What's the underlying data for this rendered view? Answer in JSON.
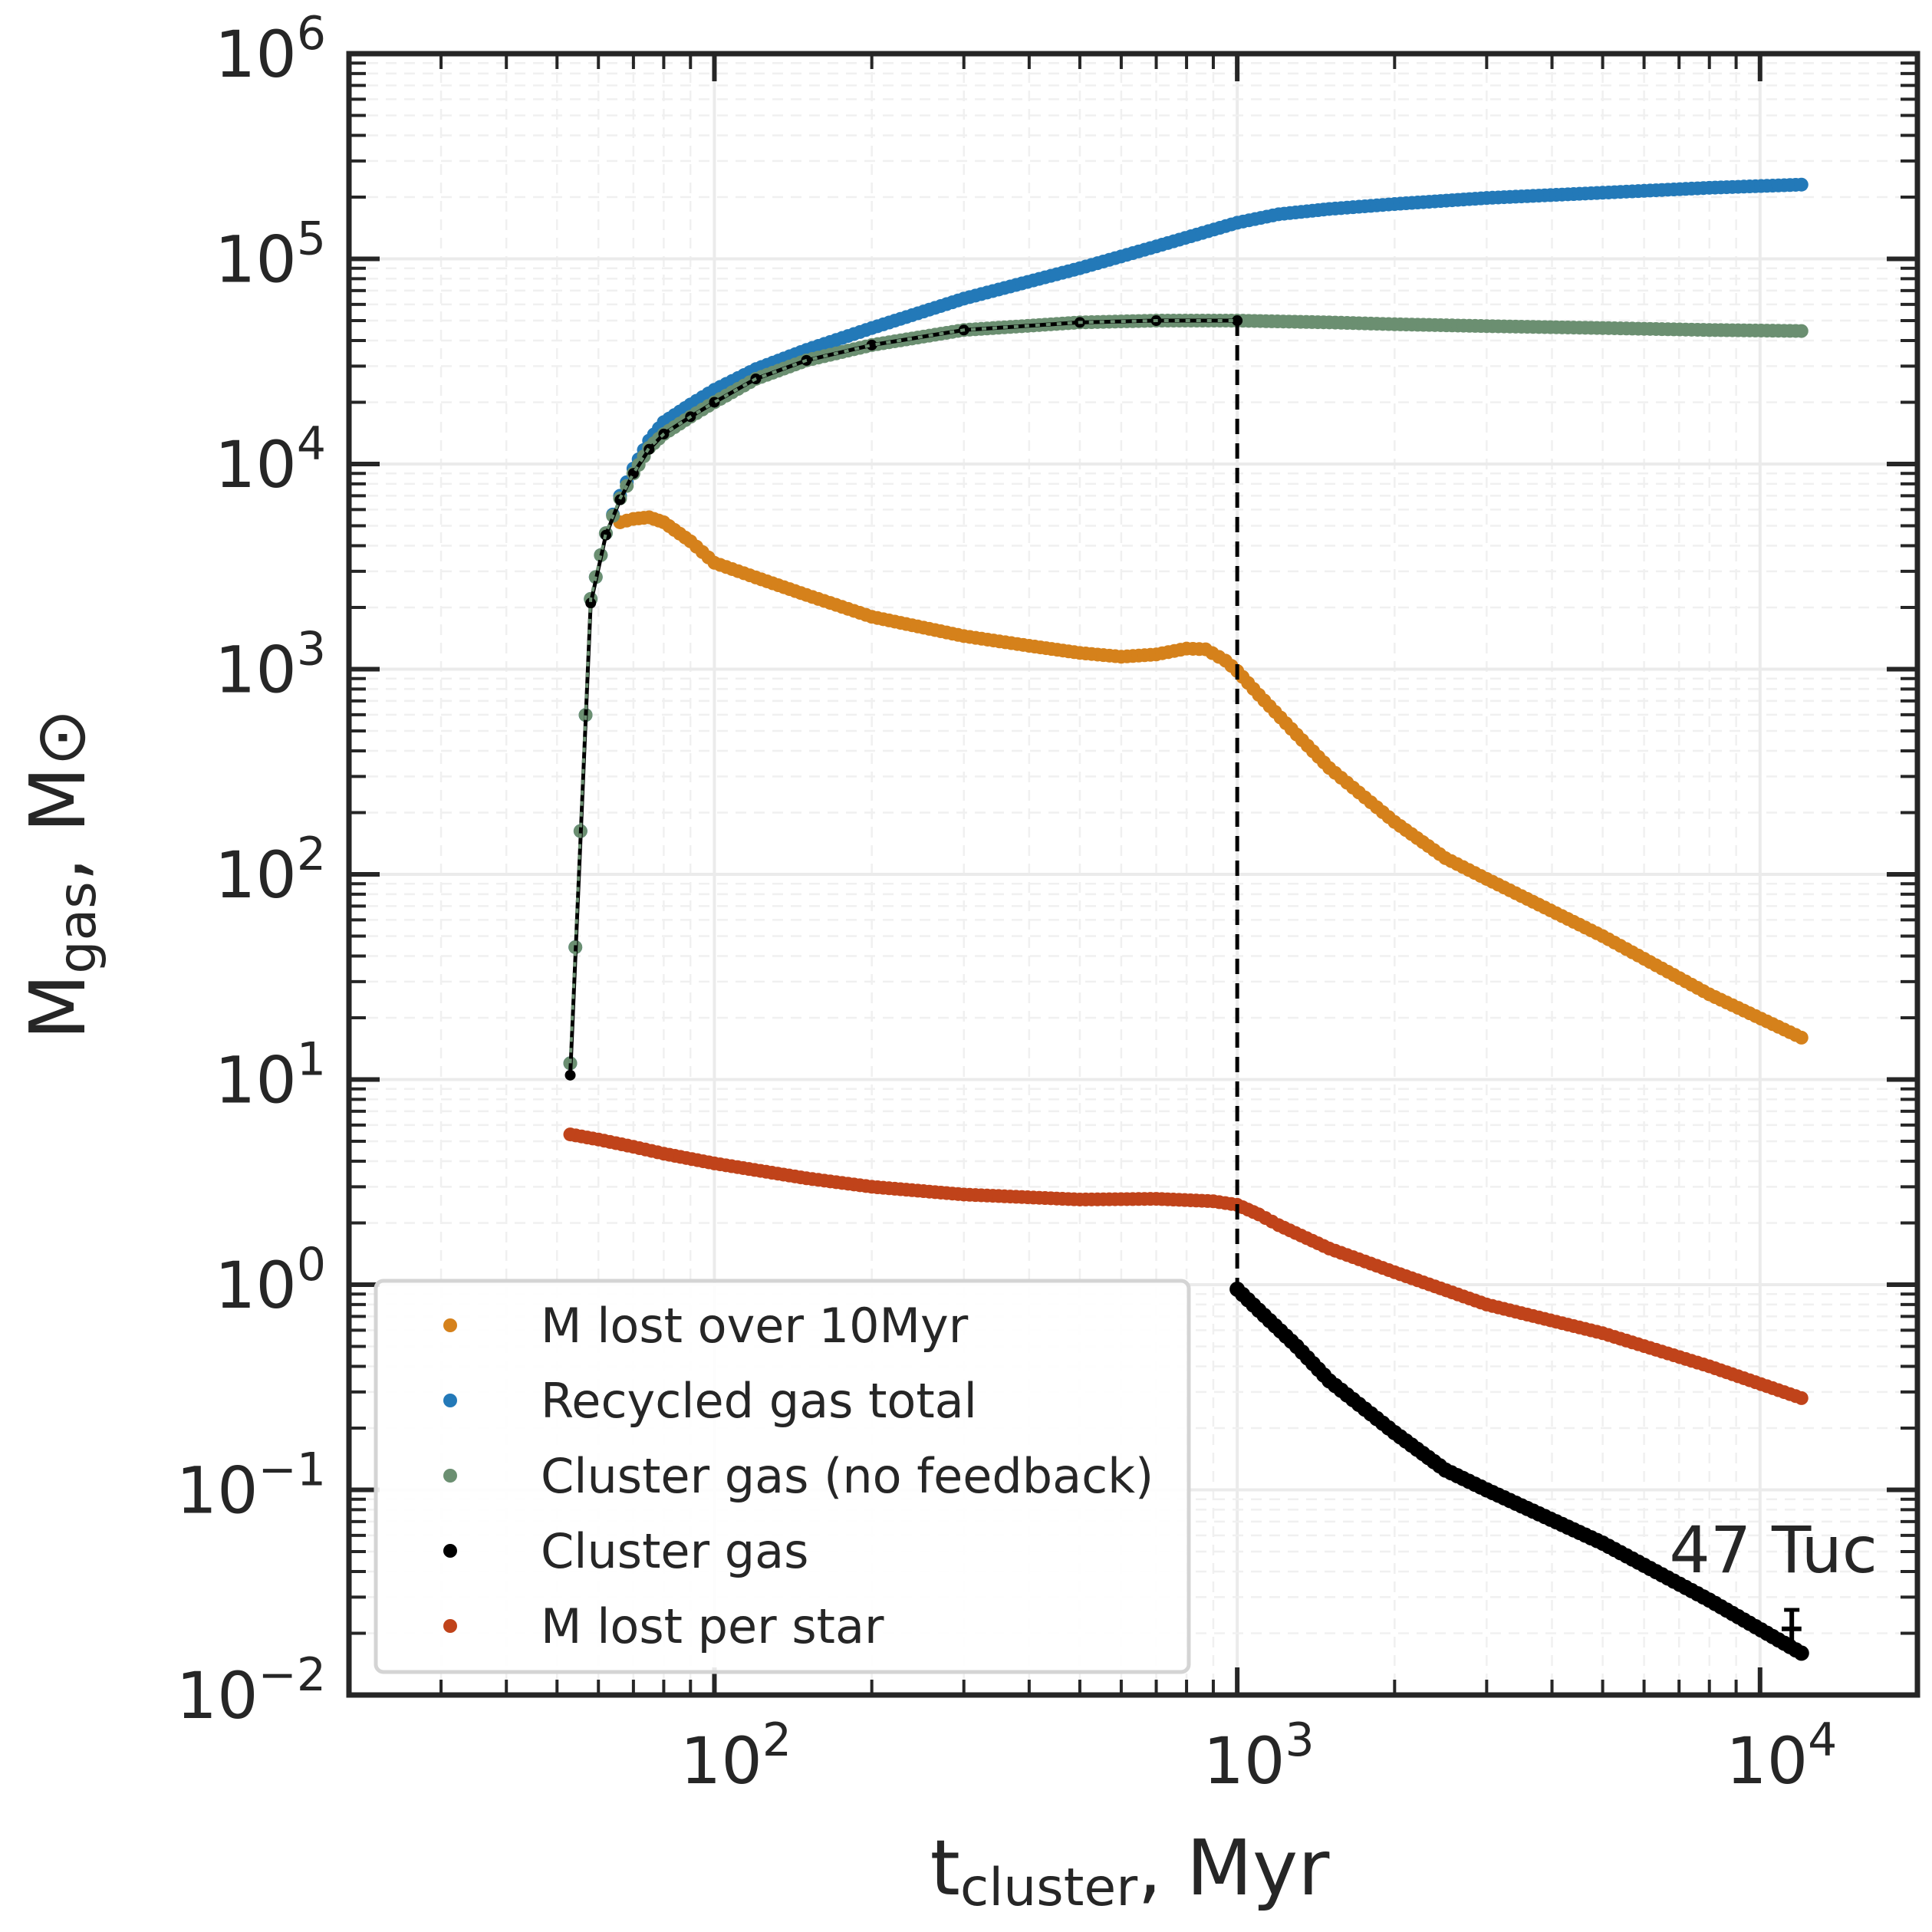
{
  "chart_data": {
    "type": "scatter",
    "xscale": "log",
    "yscale": "log",
    "xlim": [
      20,
      20000
    ],
    "ylim": [
      0.01,
      1000000
    ],
    "xticks": [
      {
        "value": 100,
        "base": "10",
        "exp": "2"
      },
      {
        "value": 1000,
        "base": "10",
        "exp": "3"
      },
      {
        "value": 10000,
        "base": "10",
        "exp": "4"
      }
    ],
    "yticks": [
      {
        "value": 0.01,
        "base": "10",
        "exp": "−2"
      },
      {
        "value": 0.1,
        "base": "10",
        "exp": "−1"
      },
      {
        "value": 1,
        "base": "10",
        "exp": "0"
      },
      {
        "value": 10,
        "base": "10",
        "exp": "1"
      },
      {
        "value": 100,
        "base": "10",
        "exp": "2"
      },
      {
        "value": 1000,
        "base": "10",
        "exp": "3"
      },
      {
        "value": 10000,
        "base": "10",
        "exp": "4"
      },
      {
        "value": 100000,
        "base": "10",
        "exp": "5"
      },
      {
        "value": 1000000,
        "base": "10",
        "exp": "6"
      }
    ],
    "xlabel": {
      "main": "t",
      "sub": "cluster",
      "rest": ", Myr"
    },
    "ylabel": {
      "main": "M",
      "sub": "gas",
      "rest": ", M",
      "symbol": "⊙"
    },
    "grid": true,
    "vline": {
      "x": 1000,
      "y_from": 0.95,
      "y_to": 50000,
      "style": "dashed"
    },
    "series": [
      {
        "name": "M lost over 10Myr",
        "color": "#d5811b",
        "points": [
          [
            66,
            5200
          ],
          [
            70,
            5400
          ],
          [
            75,
            5500
          ],
          [
            80,
            5200
          ],
          [
            90,
            4200
          ],
          [
            100,
            3300
          ],
          [
            120,
            2800
          ],
          [
            150,
            2300
          ],
          [
            200,
            1800
          ],
          [
            300,
            1450
          ],
          [
            400,
            1300
          ],
          [
            500,
            1200
          ],
          [
            600,
            1150
          ],
          [
            700,
            1180
          ],
          [
            800,
            1260
          ],
          [
            870,
            1250
          ],
          [
            950,
            1100
          ],
          [
            1000,
            980
          ],
          [
            1100,
            750
          ],
          [
            1300,
            480
          ],
          [
            1500,
            330
          ],
          [
            2000,
            180
          ],
          [
            2500,
            120
          ],
          [
            3000,
            95
          ],
          [
            5000,
            50
          ],
          [
            8000,
            26
          ],
          [
            12000,
            16
          ]
        ]
      },
      {
        "name": "Recycled gas total",
        "color": "#2379b8",
        "points": [
          [
            53,
            12
          ],
          [
            58,
            2200
          ],
          [
            62,
            4600
          ],
          [
            66,
            7000
          ],
          [
            70,
            9500
          ],
          [
            75,
            13000
          ],
          [
            80,
            16000
          ],
          [
            90,
            19500
          ],
          [
            100,
            23000
          ],
          [
            120,
            29000
          ],
          [
            150,
            36000
          ],
          [
            200,
            46000
          ],
          [
            300,
            64000
          ],
          [
            500,
            90000
          ],
          [
            700,
            115000
          ],
          [
            1000,
            150000
          ],
          [
            1200,
            165000
          ],
          [
            1500,
            175000
          ],
          [
            2000,
            185000
          ],
          [
            3000,
            198000
          ],
          [
            5000,
            210000
          ],
          [
            8000,
            222000
          ],
          [
            12000,
            230000
          ]
        ]
      },
      {
        "name": "Cluster gas (no feedback)",
        "color": "#6b8f71",
        "points": [
          [
            53,
            12
          ],
          [
            58,
            2200
          ],
          [
            62,
            4600
          ],
          [
            66,
            6800
          ],
          [
            70,
            9000
          ],
          [
            75,
            12000
          ],
          [
            80,
            14000
          ],
          [
            90,
            17000
          ],
          [
            100,
            20000
          ],
          [
            120,
            26000
          ],
          [
            150,
            32000
          ],
          [
            200,
            38000
          ],
          [
            300,
            45000
          ],
          [
            500,
            49000
          ],
          [
            700,
            50000
          ],
          [
            1000,
            50000
          ],
          [
            1500,
            49000
          ],
          [
            2000,
            48000
          ],
          [
            3000,
            47000
          ],
          [
            5000,
            46000
          ],
          [
            8000,
            45000
          ],
          [
            12000,
            44500
          ]
        ]
      },
      {
        "name": "Cluster gas",
        "color": "#000000",
        "points": [
          [
            53,
            10.5
          ],
          [
            58,
            2100
          ],
          [
            62,
            4500
          ],
          [
            66,
            6700
          ],
          [
            70,
            9000
          ],
          [
            75,
            11800
          ],
          [
            80,
            14000
          ],
          [
            90,
            17000
          ],
          [
            100,
            20000
          ],
          [
            120,
            26000
          ],
          [
            150,
            32000
          ],
          [
            200,
            38000
          ],
          [
            300,
            45000
          ],
          [
            500,
            49000
          ],
          [
            700,
            50000
          ],
          [
            1000,
            50000
          ]
        ],
        "points_late": [
          [
            1000,
            0.95
          ],
          [
            1100,
            0.75
          ],
          [
            1300,
            0.5
          ],
          [
            1500,
            0.34
          ],
          [
            2000,
            0.19
          ],
          [
            2500,
            0.125
          ],
          [
            3000,
            0.1
          ],
          [
            5000,
            0.055
          ],
          [
            8000,
            0.029
          ],
          [
            12000,
            0.016
          ]
        ]
      },
      {
        "name": "M lost per star",
        "color": "#c0431a",
        "points": [
          [
            53,
            5.4
          ],
          [
            60,
            5.1
          ],
          [
            70,
            4.7
          ],
          [
            80,
            4.35
          ],
          [
            100,
            3.9
          ],
          [
            150,
            3.3
          ],
          [
            200,
            3.0
          ],
          [
            300,
            2.75
          ],
          [
            500,
            2.6
          ],
          [
            700,
            2.62
          ],
          [
            900,
            2.55
          ],
          [
            1000,
            2.45
          ],
          [
            1100,
            2.2
          ],
          [
            1200,
            1.95
          ],
          [
            1500,
            1.5
          ],
          [
            2000,
            1.15
          ],
          [
            3000,
            0.8
          ],
          [
            5000,
            0.58
          ],
          [
            8000,
            0.4
          ],
          [
            12000,
            0.28
          ]
        ]
      }
    ],
    "reference_point": {
      "label": "47 Tuc",
      "x": 11500,
      "y": 0.021,
      "yerr_low": 0.017,
      "yerr_high": 0.026,
      "xerr_low": 11000,
      "xerr_high": 12000
    }
  },
  "legend": {
    "items": [
      {
        "label": "M lost over 10Myr",
        "color": "#d5811b"
      },
      {
        "label": "Recycled gas total",
        "color": "#2379b8"
      },
      {
        "label": "Cluster gas (no feedback)",
        "color": "#6b8f71"
      },
      {
        "label": "Cluster gas",
        "color": "#000000"
      },
      {
        "label": "M lost per star",
        "color": "#c0431a"
      }
    ]
  },
  "annotation": {
    "text": "47 Tuc"
  }
}
